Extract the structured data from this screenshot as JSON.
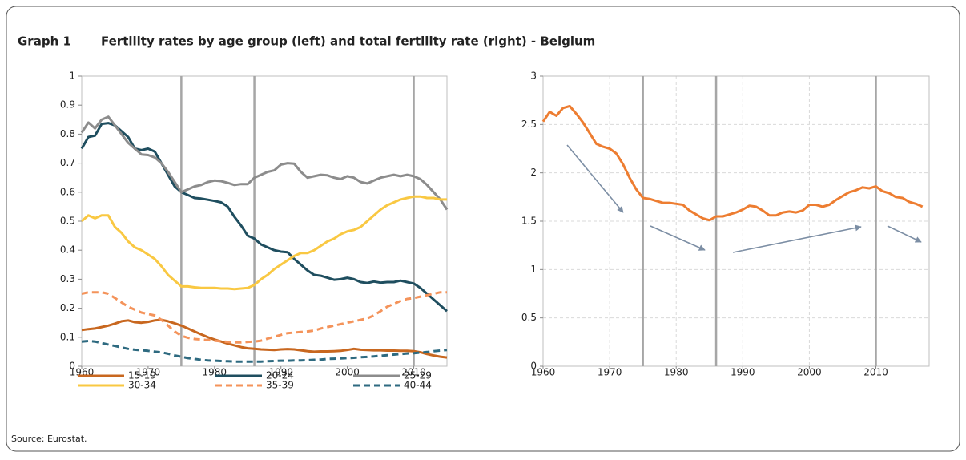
{
  "label": "Graph 1",
  "title": "Fertility rates by age group (left) and total fertility rate (right) - Belgium",
  "source": "Source: Eurostat.",
  "chart_data": [
    {
      "type": "line",
      "x": [
        1960,
        1961,
        1962,
        1963,
        1964,
        1965,
        1966,
        1967,
        1968,
        1969,
        1970,
        1971,
        1972,
        1973,
        1974,
        1975,
        1976,
        1977,
        1978,
        1979,
        1980,
        1981,
        1982,
        1983,
        1984,
        1985,
        1986,
        1987,
        1988,
        1989,
        1990,
        1991,
        1992,
        1993,
        1994,
        1995,
        1996,
        1997,
        1998,
        1999,
        2000,
        2001,
        2002,
        2003,
        2004,
        2005,
        2006,
        2007,
        2008,
        2009,
        2010,
        2011,
        2012,
        2013,
        2014,
        2015
      ],
      "xlim": [
        1960,
        2015
      ],
      "xticks": [
        1960,
        1970,
        1980,
        1990,
        2000,
        2010
      ],
      "ylim": [
        0,
        1
      ],
      "yticks": [
        0,
        0.1,
        0.2,
        0.3,
        0.4,
        0.5,
        0.6,
        0.7,
        0.8,
        0.9,
        1
      ],
      "grid": false,
      "markers": [
        1975,
        1986,
        2010
      ],
      "legend": "bottom",
      "series": [
        {
          "name": "15-19",
          "color": "#c8671f",
          "dash": false,
          "values": [
            0.125,
            0.128,
            0.13,
            0.135,
            0.14,
            0.147,
            0.155,
            0.158,
            0.152,
            0.15,
            0.153,
            0.158,
            0.16,
            0.155,
            0.148,
            0.14,
            0.13,
            0.12,
            0.11,
            0.1,
            0.092,
            0.085,
            0.078,
            0.072,
            0.066,
            0.062,
            0.06,
            0.058,
            0.057,
            0.056,
            0.058,
            0.059,
            0.058,
            0.055,
            0.052,
            0.05,
            0.051,
            0.051,
            0.052,
            0.053,
            0.056,
            0.06,
            0.057,
            0.056,
            0.055,
            0.055,
            0.054,
            0.054,
            0.053,
            0.053,
            0.052,
            0.048,
            0.042,
            0.037,
            0.033,
            0.03
          ]
        },
        {
          "name": "20-24",
          "color": "#1f4e5f",
          "dash": false,
          "values": [
            0.75,
            0.79,
            0.795,
            0.835,
            0.838,
            0.83,
            0.81,
            0.79,
            0.75,
            0.745,
            0.75,
            0.74,
            0.7,
            0.66,
            0.62,
            0.6,
            0.59,
            0.58,
            0.578,
            0.574,
            0.57,
            0.565,
            0.55,
            0.515,
            0.485,
            0.45,
            0.44,
            0.42,
            0.41,
            0.4,
            0.395,
            0.393,
            0.37,
            0.35,
            0.33,
            0.315,
            0.312,
            0.305,
            0.298,
            0.3,
            0.305,
            0.3,
            0.29,
            0.287,
            0.292,
            0.288,
            0.29,
            0.29,
            0.295,
            0.29,
            0.285,
            0.27,
            0.25,
            0.23,
            0.21,
            0.19
          ]
        },
        {
          "name": "25-29",
          "color": "#8c8c8c",
          "dash": false,
          "values": [
            0.805,
            0.84,
            0.82,
            0.85,
            0.86,
            0.83,
            0.8,
            0.77,
            0.75,
            0.73,
            0.728,
            0.72,
            0.7,
            0.67,
            0.635,
            0.6,
            0.61,
            0.62,
            0.625,
            0.635,
            0.64,
            0.638,
            0.632,
            0.625,
            0.628,
            0.628,
            0.65,
            0.66,
            0.67,
            0.675,
            0.695,
            0.7,
            0.698,
            0.67,
            0.65,
            0.655,
            0.66,
            0.658,
            0.65,
            0.645,
            0.655,
            0.65,
            0.635,
            0.63,
            0.64,
            0.65,
            0.655,
            0.66,
            0.655,
            0.66,
            0.655,
            0.645,
            0.625,
            0.6,
            0.575,
            0.54
          ]
        },
        {
          "name": "30-34",
          "color": "#f9c842",
          "dash": false,
          "values": [
            0.5,
            0.52,
            0.51,
            0.52,
            0.52,
            0.48,
            0.46,
            0.43,
            0.41,
            0.4,
            0.385,
            0.37,
            0.345,
            0.315,
            0.295,
            0.275,
            0.275,
            0.272,
            0.27,
            0.27,
            0.27,
            0.268,
            0.268,
            0.266,
            0.268,
            0.27,
            0.28,
            0.3,
            0.315,
            0.335,
            0.35,
            0.365,
            0.38,
            0.39,
            0.39,
            0.4,
            0.415,
            0.43,
            0.44,
            0.455,
            0.465,
            0.47,
            0.48,
            0.5,
            0.52,
            0.54,
            0.555,
            0.565,
            0.575,
            0.58,
            0.585,
            0.585,
            0.58,
            0.58,
            0.575,
            0.575
          ]
        },
        {
          "name": "35-39",
          "color": "#f4935a",
          "dash": true,
          "values": [
            0.25,
            0.255,
            0.255,
            0.255,
            0.25,
            0.235,
            0.22,
            0.205,
            0.195,
            0.185,
            0.18,
            0.175,
            0.16,
            0.14,
            0.12,
            0.105,
            0.098,
            0.094,
            0.092,
            0.09,
            0.088,
            0.086,
            0.084,
            0.082,
            0.082,
            0.084,
            0.085,
            0.088,
            0.095,
            0.102,
            0.108,
            0.114,
            0.116,
            0.118,
            0.12,
            0.123,
            0.13,
            0.135,
            0.14,
            0.145,
            0.15,
            0.155,
            0.16,
            0.165,
            0.175,
            0.19,
            0.205,
            0.215,
            0.225,
            0.232,
            0.235,
            0.24,
            0.245,
            0.25,
            0.255,
            0.255
          ]
        },
        {
          "name": "40-44",
          "color": "#2e6a80",
          "dash": true,
          "values": [
            0.085,
            0.087,
            0.085,
            0.08,
            0.075,
            0.07,
            0.065,
            0.06,
            0.057,
            0.055,
            0.053,
            0.05,
            0.048,
            0.043,
            0.037,
            0.033,
            0.028,
            0.025,
            0.022,
            0.02,
            0.019,
            0.018,
            0.017,
            0.016,
            0.016,
            0.016,
            0.016,
            0.016,
            0.017,
            0.018,
            0.019,
            0.019,
            0.02,
            0.02,
            0.021,
            0.022,
            0.023,
            0.025,
            0.026,
            0.027,
            0.028,
            0.029,
            0.031,
            0.032,
            0.034,
            0.036,
            0.038,
            0.04,
            0.042,
            0.044,
            0.045,
            0.047,
            0.049,
            0.052,
            0.054,
            0.056
          ]
        }
      ]
    },
    {
      "type": "line",
      "x": [
        1960,
        1961,
        1962,
        1963,
        1964,
        1965,
        1966,
        1967,
        1968,
        1969,
        1970,
        1971,
        1972,
        1973,
        1974,
        1975,
        1976,
        1977,
        1978,
        1979,
        1980,
        1981,
        1982,
        1983,
        1984,
        1985,
        1986,
        1987,
        1988,
        1989,
        1990,
        1991,
        1992,
        1993,
        1994,
        1995,
        1996,
        1997,
        1998,
        1999,
        2000,
        2001,
        2002,
        2003,
        2004,
        2005,
        2006,
        2007,
        2008,
        2009,
        2010,
        2011,
        2012,
        2013,
        2014,
        2015,
        2016,
        2017
      ],
      "xlim": [
        1960,
        2018
      ],
      "xticks": [
        1960,
        1970,
        1980,
        1990,
        2000,
        2010
      ],
      "ylim": [
        0,
        3
      ],
      "yticks": [
        0,
        0.5,
        1,
        1.5,
        2,
        2.5,
        3
      ],
      "grid": true,
      "markers": [
        1975,
        1986,
        2010
      ],
      "series": [
        {
          "color": "#ed7d31",
          "dash": false,
          "values": [
            2.53,
            2.63,
            2.59,
            2.67,
            2.69,
            2.61,
            2.52,
            2.41,
            2.3,
            2.27,
            2.25,
            2.2,
            2.09,
            1.95,
            1.83,
            1.74,
            1.73,
            1.71,
            1.69,
            1.69,
            1.68,
            1.67,
            1.61,
            1.57,
            1.53,
            1.51,
            1.55,
            1.55,
            1.57,
            1.59,
            1.62,
            1.66,
            1.65,
            1.61,
            1.56,
            1.56,
            1.59,
            1.6,
            1.59,
            1.61,
            1.67,
            1.67,
            1.65,
            1.67,
            1.72,
            1.76,
            1.8,
            1.82,
            1.85,
            1.84,
            1.86,
            1.81,
            1.79,
            1.75,
            1.74,
            1.7,
            1.68,
            1.65
          ]
        }
      ]
    }
  ]
}
